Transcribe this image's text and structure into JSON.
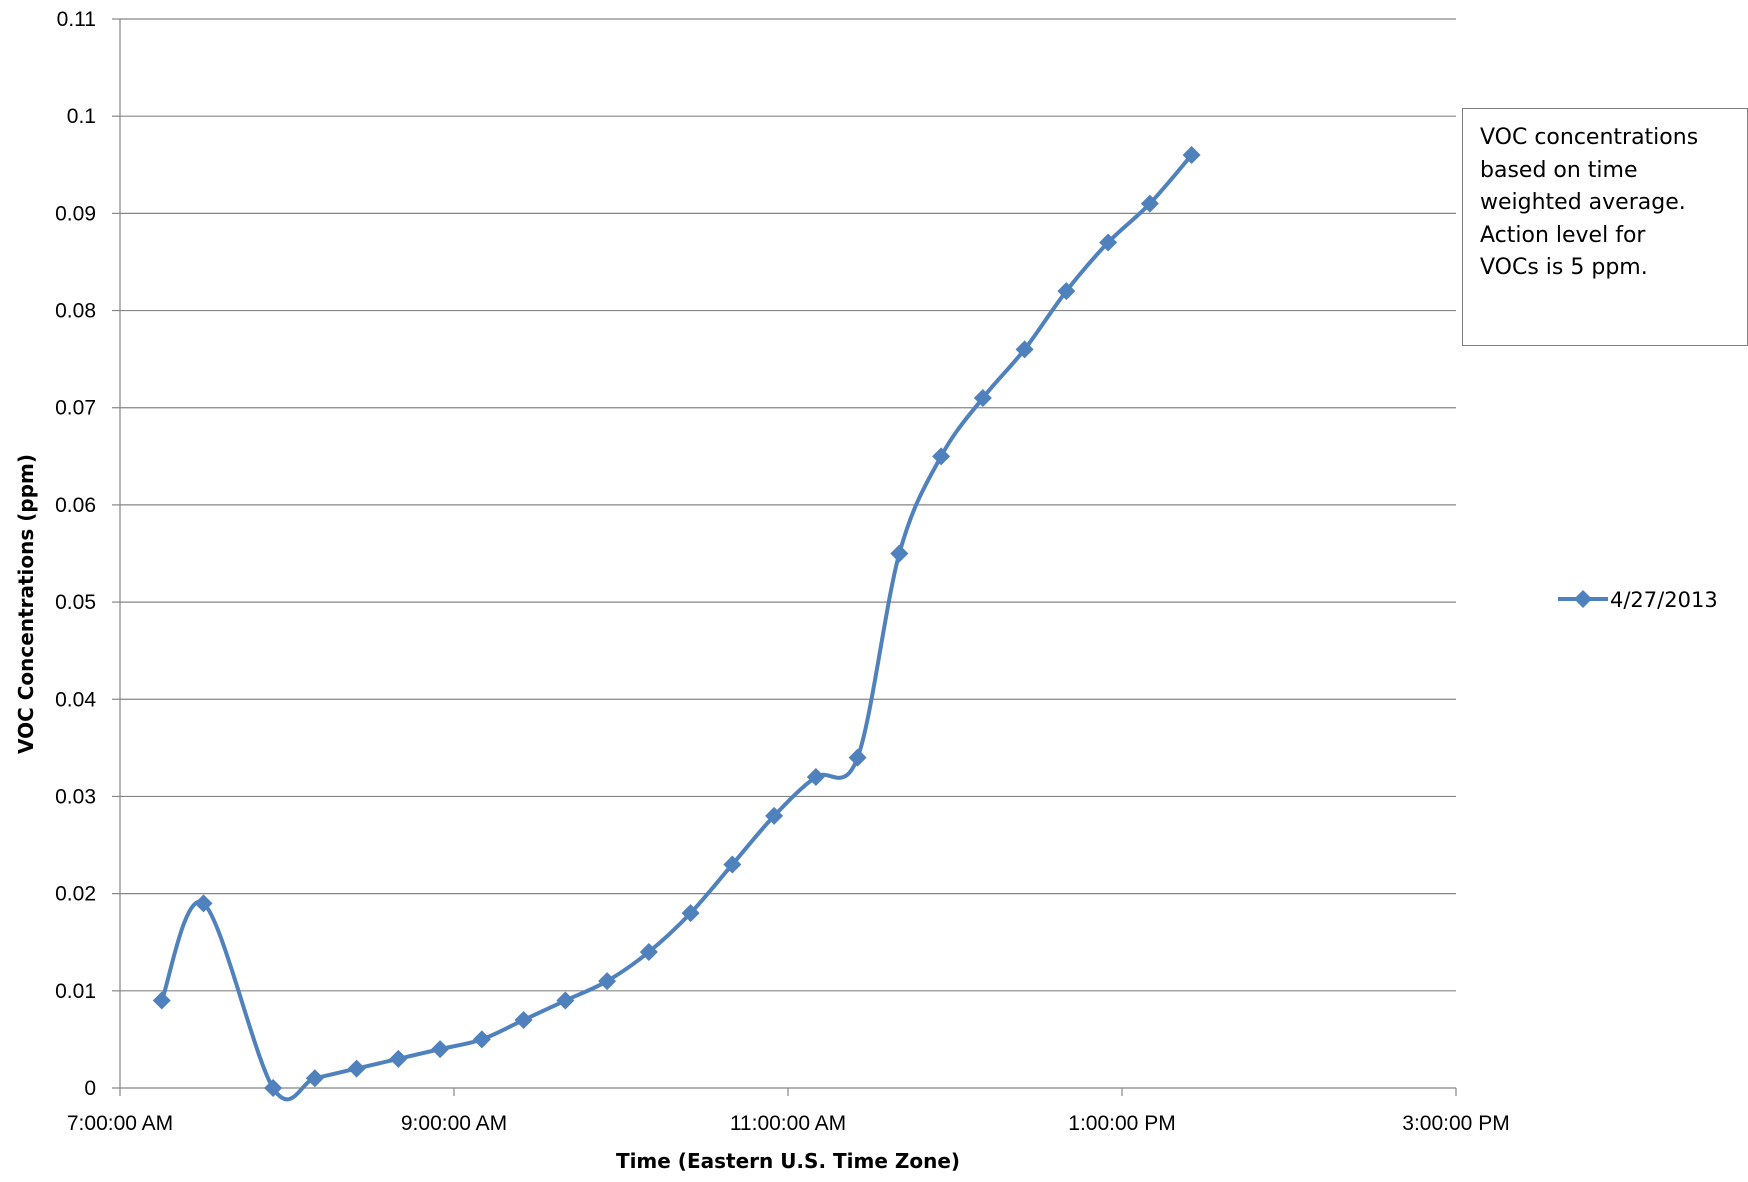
{
  "chart_data": {
    "type": "line",
    "xlabel": "Time (Eastern U.S. Time Zone)",
    "ylabel": "VOC Concentrations (ppm)",
    "xlim": [
      "7:00:00 AM",
      "3:00:00 PM"
    ],
    "ylim": [
      0,
      0.11
    ],
    "x_ticks": [
      "7:00:00 AM",
      "9:00:00 AM",
      "11:00:00 AM",
      "1:00:00 PM",
      "3:00:00 PM"
    ],
    "y_ticks": [
      "0",
      "0.01",
      "0.02",
      "0.03",
      "0.04",
      "0.05",
      "0.06",
      "0.07",
      "0.08",
      "0.09",
      "0.1",
      "0.11"
    ],
    "grid": "horizontal",
    "smoothed": true,
    "legend_position": "right",
    "annotation": "VOC concentrations based on time weighted average. Action level  for VOCs  is 5 ppm.",
    "annotation_lines": [
      "VOC concentrations",
      "based on time",
      "weighted average.",
      "Action level  for",
      "VOCs  is 5 ppm."
    ],
    "series": [
      {
        "name": "4/27/2013",
        "color": "#4f81bd",
        "marker": "diamond",
        "x": [
          "7:15 AM",
          "7:30 AM",
          "7:55 AM",
          "8:10 AM",
          "8:25 AM",
          "8:40 AM",
          "8:55 AM",
          "9:10 AM",
          "9:25 AM",
          "9:40 AM",
          "9:55 AM",
          "10:10 AM",
          "10:25 AM",
          "10:40 AM",
          "10:55 AM",
          "11:10 AM",
          "11:25 AM",
          "11:40 AM",
          "11:55 AM",
          "12:10 PM",
          "12:25 PM",
          "12:40 PM",
          "12:55 PM",
          "1:10 PM",
          "1:25 PM"
        ],
        "values": [
          0.009,
          0.019,
          0,
          0.001,
          0.002,
          0.003,
          0.004,
          0.005,
          0.007,
          0.009,
          0.011,
          0.014,
          0.018,
          0.023,
          0.028,
          0.032,
          0.034,
          0.055,
          0.065,
          0.071,
          0.076,
          0.082,
          0.087,
          0.091,
          0.096
        ]
      }
    ]
  }
}
